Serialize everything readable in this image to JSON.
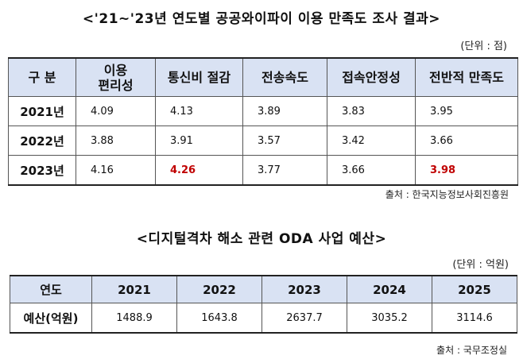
{
  "table1": {
    "title": "<'21~'23년 연도별 공공와이파이 이용 만족도 조사 결과>",
    "unit": "(단위 : 점)",
    "headers": [
      "구 분",
      "이용\n편리성",
      "통신비 절감",
      "전송속도",
      "접속안정성",
      "전반적 만족도"
    ],
    "rows": [
      {
        "label": "2021년",
        "values": [
          "4.09",
          "4.13",
          "3.89",
          "3.83",
          "3.95"
        ]
      },
      {
        "label": "2022년",
        "values": [
          "3.88",
          "3.91",
          "3.57",
          "3.42",
          "3.66"
        ]
      },
      {
        "label": "2023년",
        "values": [
          "4.16",
          "4.26",
          "3.77",
          "3.66",
          "3.98"
        ]
      }
    ],
    "highlight_color": "#c00000",
    "source": "출처 : 한국지능정보사회진흥원"
  },
  "table2": {
    "title": "<디지털격차 해소 관련 ODA 사업 예산>",
    "unit": "(단위 : 억원)",
    "headers": [
      "연도",
      "2021",
      "2022",
      "2023",
      "2024",
      "2025"
    ],
    "row": {
      "label": "예산(억원)",
      "values": [
        "1488.9",
        "1643.8",
        "2637.7",
        "3035.2",
        "3114.6"
      ]
    },
    "source": "출처 : 국무조정실"
  },
  "header_bg": "#d9e2f3"
}
